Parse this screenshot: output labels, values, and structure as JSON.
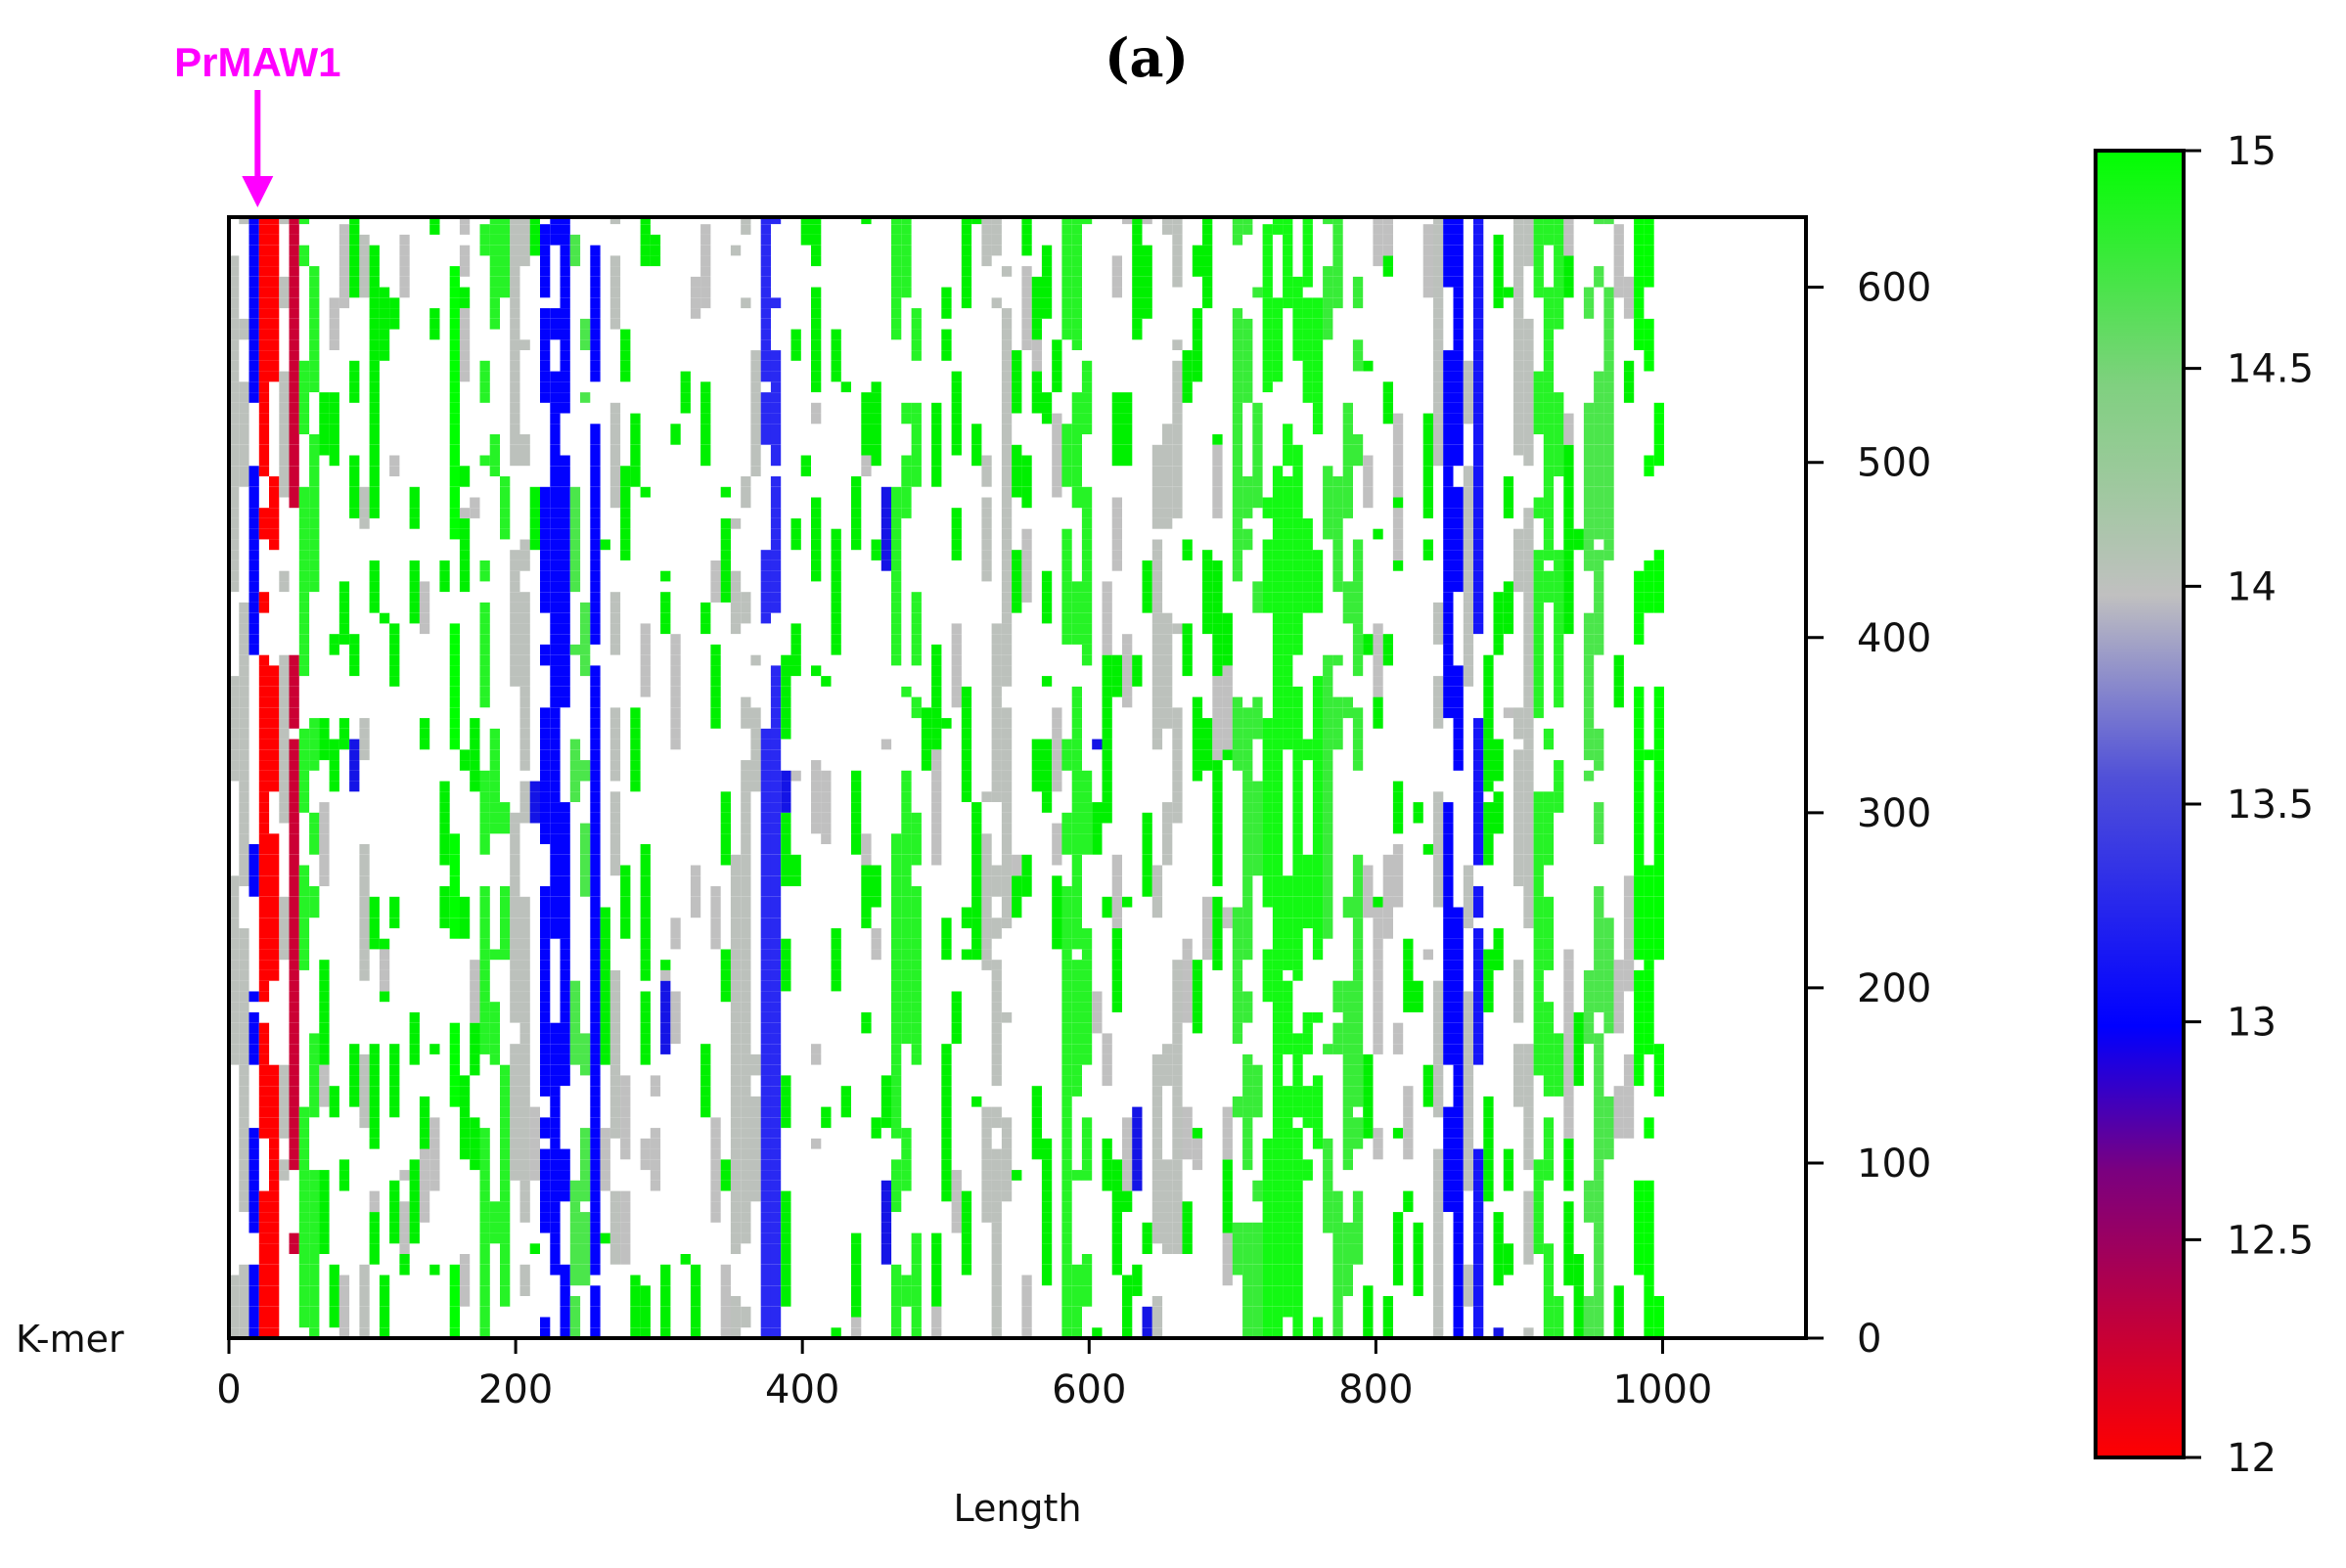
{
  "chart_data": {
    "type": "heatmap",
    "title": "(a)",
    "xlabel": "Length",
    "ylabel": "K-mer",
    "xlim": [
      0,
      1100
    ],
    "ylim": [
      0,
      640
    ],
    "x_ticks": [
      "0",
      "200",
      "400",
      "600",
      "800",
      "1000"
    ],
    "y_ticks": [
      "0",
      "100",
      "200",
      "300",
      "400",
      "500",
      "600"
    ],
    "colorbar": {
      "range": [
        12,
        15
      ],
      "ticks": [
        "12",
        "12.5",
        "13",
        "13.5",
        "14",
        "14.5",
        "15"
      ],
      "colors": [
        "#ff0000",
        "#0000ff",
        "#c0c0c0",
        "#00ff00"
      ]
    },
    "annotation": {
      "text": "PrMAW1",
      "x": 20,
      "color": "#ff00ff"
    },
    "bands": [
      {
        "x0": 0,
        "x1": 10,
        "value": 14.0
      },
      {
        "x0": 10,
        "x1": 16,
        "value": 13.0
      },
      {
        "x0": 16,
        "x1": 30,
        "value": 12.0
      },
      {
        "x0": 30,
        "x1": 38,
        "value": 14.0
      },
      {
        "x0": 38,
        "x1": 46,
        "value": 12.2
      },
      {
        "x0": 46,
        "x1": 60,
        "value": 14.8
      },
      {
        "x0": 64,
        "x1": 70,
        "value": 13.0
      },
      {
        "x0": 85,
        "x1": 95,
        "value": 14.0
      },
      {
        "x0": 150,
        "x1": 160,
        "value": 15.0
      },
      {
        "x0": 175,
        "x1": 190,
        "value": 14.8
      },
      {
        "x0": 190,
        "x1": 210,
        "value": 14.0
      },
      {
        "x0": 215,
        "x1": 235,
        "value": 13.0
      },
      {
        "x0": 235,
        "x1": 248,
        "value": 14.6
      },
      {
        "x0": 248,
        "x1": 258,
        "value": 13.0
      },
      {
        "x0": 260,
        "x1": 270,
        "value": 14.0
      },
      {
        "x0": 350,
        "x1": 365,
        "value": 14.0
      },
      {
        "x0": 370,
        "x1": 380,
        "value": 13.2
      },
      {
        "x0": 460,
        "x1": 480,
        "value": 14.8
      },
      {
        "x0": 520,
        "x1": 540,
        "value": 14.0
      },
      {
        "x0": 580,
        "x1": 600,
        "value": 14.8
      },
      {
        "x0": 640,
        "x1": 660,
        "value": 14.0
      },
      {
        "x0": 700,
        "x1": 720,
        "value": 14.7
      },
      {
        "x0": 720,
        "x1": 760,
        "value": 14.9
      },
      {
        "x0": 760,
        "x1": 790,
        "value": 14.7
      },
      {
        "x0": 835,
        "x1": 845,
        "value": 14.0
      },
      {
        "x0": 840,
        "x1": 858,
        "value": 13.0
      },
      {
        "x0": 858,
        "x1": 865,
        "value": 14.0
      },
      {
        "x0": 865,
        "x1": 875,
        "value": 13.1
      },
      {
        "x0": 890,
        "x1": 905,
        "value": 14.0
      },
      {
        "x0": 905,
        "x1": 925,
        "value": 14.8
      },
      {
        "x0": 940,
        "x1": 960,
        "value": 14.6
      },
      {
        "x0": 980,
        "x1": 995,
        "value": 15.0
      }
    ]
  }
}
